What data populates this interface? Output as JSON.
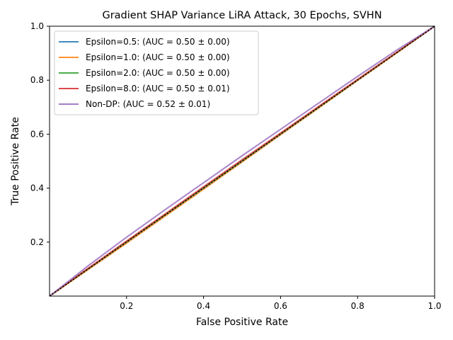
{
  "chart_data": {
    "type": "line",
    "title": "Gradient SHAP Variance LiRA Attack, 30 Epochs, SVHN",
    "xlabel": "False Positive Rate",
    "ylabel": "True Positive Rate",
    "xlim": [
      0,
      1
    ],
    "ylim": [
      0,
      1
    ],
    "x_ticks": [
      "0.2",
      "0.4",
      "0.6",
      "0.8",
      "1.0"
    ],
    "y_ticks": [
      "0.2",
      "0.4",
      "0.6",
      "0.8",
      "1.0"
    ],
    "grid": false,
    "legend_position": "upper-left",
    "series": [
      {
        "name": "Epsilon=0.5: (AUC = 0.50 ± 0.00)",
        "color": "#1f77b4",
        "x": [
          0,
          0.1,
          0.2,
          0.3,
          0.4,
          0.5,
          0.6,
          0.7,
          0.8,
          0.9,
          1.0
        ],
        "y": [
          0,
          0.1,
          0.2,
          0.3,
          0.4,
          0.5,
          0.6,
          0.7,
          0.8,
          0.9,
          1.0
        ]
      },
      {
        "name": "Epsilon=1.0: (AUC = 0.50 ± 0.00)",
        "color": "#ff7f0e",
        "x": [
          0,
          0.1,
          0.2,
          0.3,
          0.4,
          0.5,
          0.6,
          0.7,
          0.8,
          0.9,
          1.0
        ],
        "y": [
          0,
          0.098,
          0.196,
          0.296,
          0.396,
          0.497,
          0.598,
          0.698,
          0.799,
          0.899,
          1.0
        ]
      },
      {
        "name": "Epsilon=2.0: (AUC = 0.50 ± 0.00)",
        "color": "#2ca02c",
        "x": [
          0,
          0.1,
          0.2,
          0.3,
          0.4,
          0.5,
          0.6,
          0.7,
          0.8,
          0.9,
          1.0
        ],
        "y": [
          0,
          0.101,
          0.201,
          0.301,
          0.401,
          0.501,
          0.601,
          0.701,
          0.801,
          0.901,
          1.0
        ]
      },
      {
        "name": "Epsilon=8.0: (AUC = 0.50 ± 0.01)",
        "color": "#d62728",
        "x": [
          0,
          0.1,
          0.2,
          0.3,
          0.4,
          0.5,
          0.6,
          0.7,
          0.8,
          0.9,
          1.0
        ],
        "y": [
          0,
          0.103,
          0.204,
          0.304,
          0.405,
          0.505,
          0.604,
          0.704,
          0.803,
          0.902,
          1.0
        ]
      },
      {
        "name": "Non-DP: (AUC = 0.52 ± 0.01)",
        "color": "#9467bd",
        "x": [
          0,
          0.1,
          0.2,
          0.3,
          0.4,
          0.5,
          0.6,
          0.7,
          0.8,
          0.9,
          1.0
        ],
        "y": [
          0,
          0.112,
          0.218,
          0.32,
          0.42,
          0.52,
          0.618,
          0.716,
          0.814,
          0.91,
          1.0
        ]
      }
    ],
    "reference_line": {
      "style": "dotted",
      "color": "#000000",
      "x": [
        0,
        1
      ],
      "y": [
        0,
        1
      ]
    }
  }
}
